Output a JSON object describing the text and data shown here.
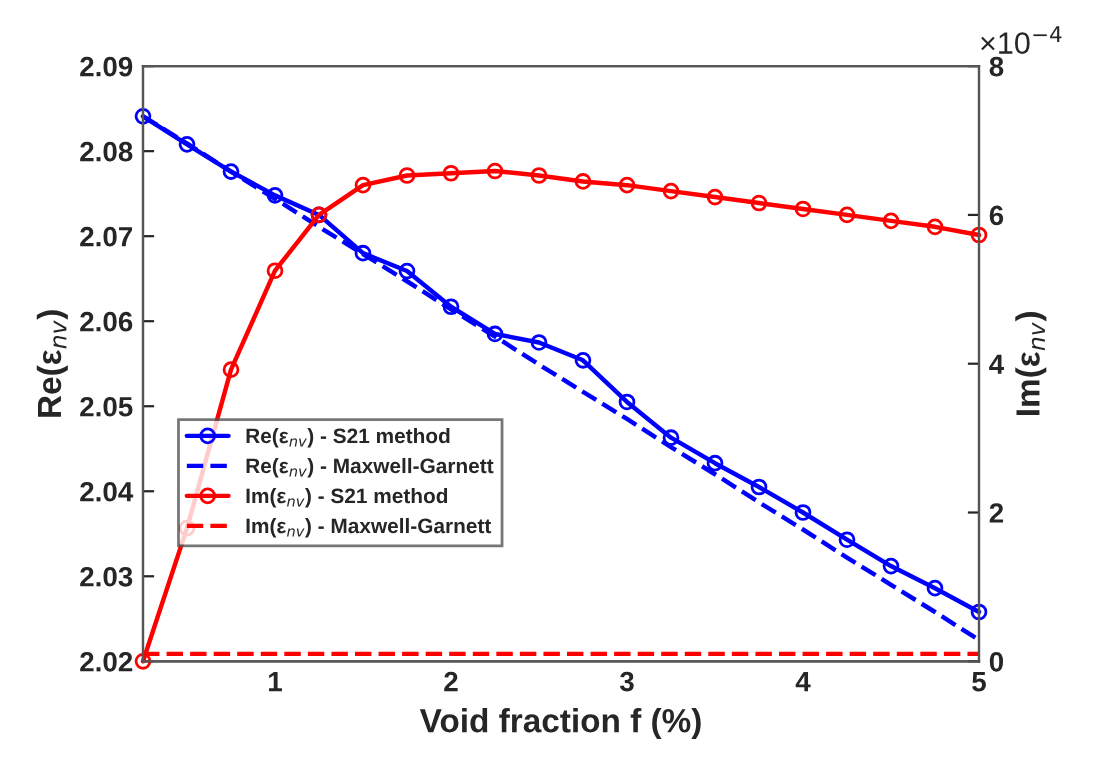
{
  "chart_data": {
    "type": "line",
    "xlabel": "Void fraction f (%)",
    "ylabel": "Re(ε$_{nv}$)",
    "y2label": "Im(ε$_{nv}$)",
    "annotations": [
      "×10$^{−4}$"
    ],
    "x": [
      0.25,
      0.5,
      0.75,
      1.0,
      1.25,
      1.5,
      1.75,
      2.0,
      2.25,
      2.5,
      2.75,
      3.0,
      3.25,
      3.5,
      3.75,
      4.0,
      4.25,
      4.5,
      4.75,
      5.0
    ],
    "series": [
      {
        "name": "Re(ε$_{nv}$) - S21 method",
        "color": "#0000ff",
        "marker": "circle",
        "line_style": "solid",
        "values": [
          2.0841,
          2.0808,
          2.0776,
          2.0748,
          2.0725,
          2.068,
          2.0659,
          2.0617,
          2.0585,
          2.0575,
          2.0554,
          2.0505,
          2.0463,
          2.0433,
          2.0405,
          2.0375,
          2.0343,
          2.0312,
          2.0286,
          2.0258
        ]
      },
      {
        "name": "Re(ε$_{nv}$) - Maxwell-Garnett",
        "color": "#0000ff",
        "marker": "none",
        "line_style": "dashed",
        "values": [
          2.0841,
          2.0809,
          2.0776,
          2.0744,
          2.0711,
          2.0679,
          2.0647,
          2.0614,
          2.0582,
          2.0549,
          2.0517,
          2.0485,
          2.0452,
          2.042,
          2.0387,
          2.0355,
          2.0322,
          2.029,
          2.0258,
          2.0225
        ]
      },
      {
        "name": "Im(ε$_{nv}$) - S21 method",
        "color": "#ff0000",
        "marker": "circle",
        "line_style": "solid",
        "axis": "y2",
        "values": [
          0,
          1.79,
          3.92,
          5.25,
          6.0,
          6.4,
          6.53,
          6.56,
          6.59,
          6.53,
          6.45,
          6.4,
          6.32,
          6.24,
          6.16,
          6.08,
          6.0,
          5.92,
          5.84,
          5.73
        ]
      },
      {
        "name": "Im(ε$_{nv}$) - Maxwell-Garnett",
        "color": "#ff0000",
        "marker": "none",
        "line_style": "dashed",
        "axis": "y2",
        "values": [
          0.1,
          0.1,
          0.1,
          0.1,
          0.1,
          0.1,
          0.1,
          0.1,
          0.1,
          0.1,
          0.1,
          0.1,
          0.1,
          0.1,
          0.1,
          0.1,
          0.1,
          0.1,
          0.1,
          0.1
        ]
      }
    ],
    "xlim": [
      0.25,
      5
    ],
    "xticks": [
      1,
      2,
      3,
      4,
      5
    ],
    "ylim": [
      2.02,
      2.09
    ],
    "yticks": [
      2.02,
      2.03,
      2.04,
      2.05,
      2.06,
      2.07,
      2.08,
      2.09
    ],
    "y2lim": [
      0,
      8
    ],
    "y2ticks": [
      0,
      2,
      4,
      6,
      8
    ],
    "legend": "left",
    "grid": false
  }
}
